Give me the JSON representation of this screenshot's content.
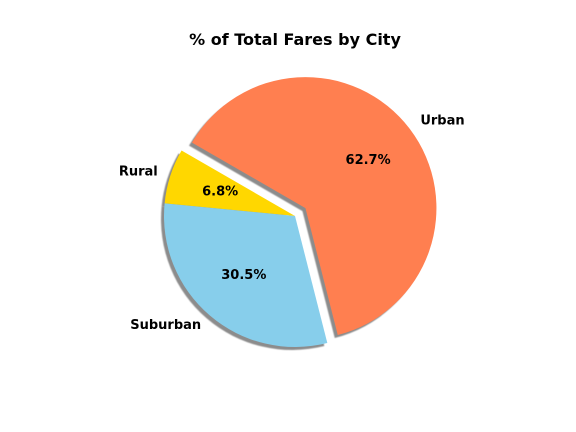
{
  "chart_data": {
    "type": "pie",
    "title": "% of Total Fares by City",
    "slices": [
      {
        "label": "Rural",
        "value": 6.8,
        "pct_label": "6.8%",
        "color": "#FFD700",
        "explode": 0
      },
      {
        "label": "Suburban",
        "value": 30.5,
        "pct_label": "30.5%",
        "color": "#87CEEB",
        "explode": 0
      },
      {
        "label": "Urban",
        "value": 62.7,
        "pct_label": "62.7%",
        "color": "#FF7F50",
        "explode": 0.1
      }
    ],
    "start_angle_deg": 150,
    "direction": "counterclockwise",
    "shadow": true,
    "edge_color": "#000000",
    "legend": "none"
  }
}
